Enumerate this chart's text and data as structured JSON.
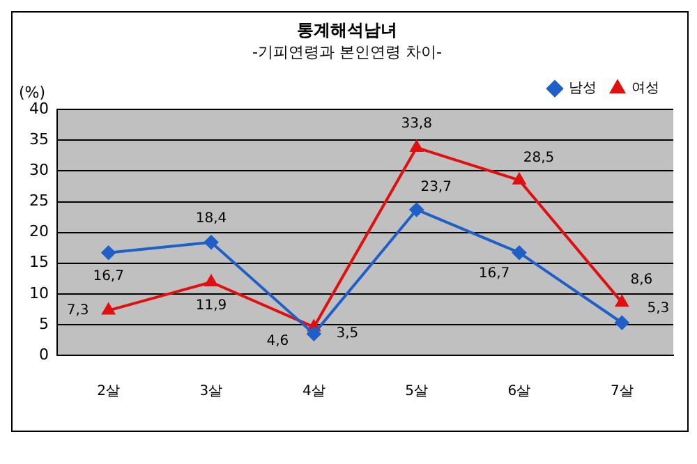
{
  "chart_data": {
    "type": "line",
    "title": "통계해석남녀",
    "subtitle": "-기피연령과 본인연령 차이-",
    "ylabel": "(%)",
    "categories": [
      "2살",
      "3살",
      "4살",
      "5살",
      "6살",
      "7살"
    ],
    "series": [
      {
        "name": "남성",
        "color": "#1f5fc8",
        "marker": "diamond",
        "values": [
          16.7,
          18.4,
          3.5,
          23.7,
          16.7,
          5.3
        ],
        "value_labels": [
          "16,7",
          "18,4",
          "3,5",
          "23,7",
          "16,7",
          "5,3"
        ]
      },
      {
        "name": "여성",
        "color": "#e01010",
        "marker": "triangle",
        "values": [
          7.3,
          11.9,
          4.6,
          33.8,
          28.5,
          8.6
        ],
        "value_labels": [
          "7,3",
          "11,9",
          "4,6",
          "33,8",
          "28,5",
          "8,6"
        ]
      }
    ],
    "ylim": [
      0,
      40
    ],
    "yticks": [
      0,
      5,
      10,
      15,
      20,
      25,
      30,
      35,
      40
    ],
    "grid": "y",
    "legend": "top right"
  }
}
